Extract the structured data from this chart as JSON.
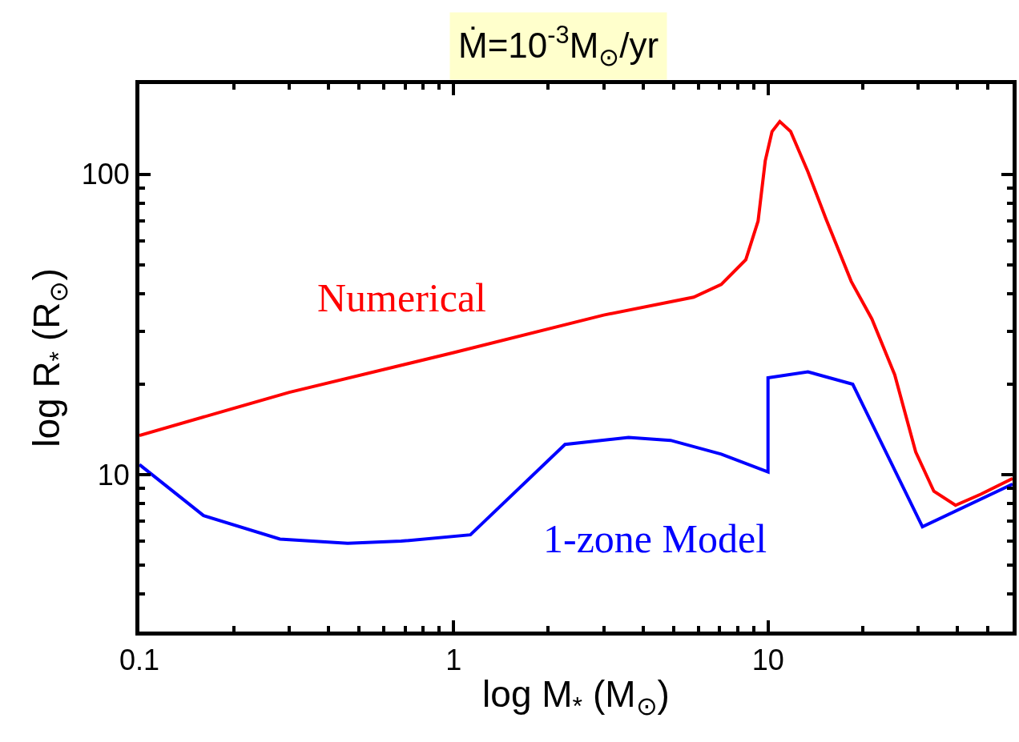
{
  "chart_data": {
    "type": "line",
    "title": "Ṁ=10$^{-3}$M$_{⊙}$/yr",
    "xlabel": "log M$_{*}$ (M$_{⊙}$)",
    "ylabel": "log R$_{*}$ (R$_{⊙}$)",
    "log": "xy",
    "xlim": [
      0.1,
      60
    ],
    "ylim": [
      3,
      200
    ],
    "xticks": [
      {
        "value": 0.1,
        "label": "0.1"
      },
      {
        "value": 0.2,
        "label": null
      },
      {
        "value": 0.3,
        "label": null
      },
      {
        "value": 0.4,
        "label": null
      },
      {
        "value": 0.5,
        "label": null
      },
      {
        "value": 0.6,
        "label": null
      },
      {
        "value": 0.7,
        "label": null
      },
      {
        "value": 0.8,
        "label": null
      },
      {
        "value": 0.9,
        "label": null
      },
      1,
      {
        "value": 2,
        "label": null
      },
      {
        "value": 3,
        "label": null
      },
      {
        "value": 4,
        "label": null
      },
      {
        "value": 5,
        "label": null
      },
      {
        "value": 6,
        "label": null
      },
      {
        "value": 7,
        "label": null
      },
      {
        "value": 8,
        "label": null
      },
      {
        "value": 9,
        "label": null
      },
      10,
      {
        "value": 20,
        "label": null
      },
      {
        "value": 30,
        "label": null
      },
      {
        "value": 40,
        "label": null
      },
      {
        "value": 50,
        "label": null
      }
    ],
    "yticks": [
      {
        "value": 3,
        "label": null
      },
      {
        "value": 4,
        "label": null
      },
      {
        "value": 5,
        "label": null
      },
      {
        "value": 6,
        "label": null
      },
      {
        "value": 7,
        "label": null
      },
      {
        "value": 8,
        "label": null
      },
      {
        "value": 9,
        "label": null
      },
      10,
      {
        "value": 20,
        "label": null
      },
      {
        "value": 30,
        "label": null
      },
      {
        "value": 40,
        "label": null
      },
      {
        "value": 50,
        "label": null
      },
      {
        "value": 60,
        "label": null
      },
      {
        "value": 70,
        "label": null
      },
      {
        "value": 80,
        "label": null
      },
      {
        "value": 90,
        "label": null
      },
      100,
      {
        "value": 200,
        "label": null
      }
    ],
    "legend": false,
    "series": [
      {
        "name": "Numerical",
        "color": "#ff0000",
        "x": [
          0.1,
          0.3,
          1.0,
          3.0,
          5.8,
          7.1,
          8.5,
          9.3,
          9.8,
          10.3,
          10.9,
          11.8,
          13.4,
          15.3,
          18.4,
          21.4,
          25.3,
          29.5,
          33.7,
          39.5,
          47.5,
          60
        ],
        "values": [
          13.5,
          18.8,
          25.5,
          34,
          39,
          43,
          52,
          70,
          111,
          139,
          150,
          139,
          102,
          71,
          44,
          33,
          21.5,
          11.9,
          8.8,
          7.9,
          8.6,
          9.7
        ]
      },
      {
        "name": "1-zone Model",
        "color": "#0000ff",
        "x": [
          0.1,
          0.16,
          0.28,
          0.46,
          0.68,
          1.13,
          2.26,
          3.6,
          4.9,
          7.1,
          10.0,
          10.0,
          13.4,
          18.6,
          31,
          60
        ],
        "values": [
          10.8,
          7.3,
          6.1,
          5.9,
          6.0,
          6.3,
          12.6,
          13.3,
          13.0,
          11.7,
          10.2,
          21,
          22,
          20,
          6.7,
          9.3
        ]
      }
    ]
  }
}
